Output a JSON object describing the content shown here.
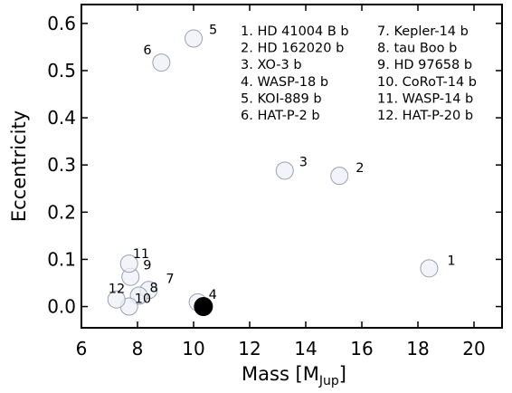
{
  "chart_data": {
    "type": "scatter",
    "xlabel": "Mass [M",
    "xlabel_sub": "Jup",
    "xlabel_close": "]",
    "ylabel": "Eccentricity",
    "xlim": [
      6,
      21
    ],
    "ylim": [
      -0.045,
      0.64
    ],
    "xticks": [
      6,
      8,
      10,
      12,
      14,
      16,
      18,
      20
    ],
    "yticks": [
      0.0,
      0.1,
      0.2,
      0.3,
      0.4,
      0.5,
      0.6
    ],
    "grid": false,
    "marker_colors": {
      "open_fill": "#eef0f8",
      "open_edge": "#9aa0b4",
      "filled": "#000000"
    },
    "points": [
      {
        "id": "1",
        "label": "1",
        "name": "HD 41004 B b",
        "x": 18.4,
        "y": 0.081,
        "filled": false
      },
      {
        "id": "2",
        "label": "2",
        "name": "HD 162020 b",
        "x": 15.2,
        "y": 0.277,
        "filled": false
      },
      {
        "id": "3",
        "label": "3",
        "name": "XO-3 b",
        "x": 13.25,
        "y": 0.288,
        "filled": false
      },
      {
        "id": "4",
        "label": "4",
        "name": "WASP-18 b",
        "x": 10.15,
        "y": 0.009,
        "filled": false
      },
      {
        "id": "5",
        "label": "5",
        "name": "KOI-889 b",
        "x": 10.0,
        "y": 0.568,
        "filled": false
      },
      {
        "id": "6",
        "label": "6",
        "name": "HAT-P-2 b",
        "x": 8.85,
        "y": 0.517,
        "filled": false
      },
      {
        "id": "7",
        "label": "7",
        "name": "Kepler-14 b",
        "x": 8.4,
        "y": 0.035,
        "filled": false
      },
      {
        "id": "8",
        "label": "8",
        "name": "tau Boo b",
        "x": 8.05,
        "y": 0.023,
        "filled": false
      },
      {
        "id": "9",
        "label": "9",
        "name": "HD 97658 b",
        "x": 7.75,
        "y": 0.063,
        "filled": false
      },
      {
        "id": "10",
        "label": "10",
        "name": "CoRoT-14 b",
        "x": 7.7,
        "y": 0.0,
        "filled": false
      },
      {
        "id": "11",
        "label": "11",
        "name": "WASP-14 b",
        "x": 7.7,
        "y": 0.091,
        "filled": false
      },
      {
        "id": "12",
        "label": "12",
        "name": "HAT-P-20 b",
        "x": 7.25,
        "y": 0.015,
        "filled": false
      },
      {
        "id": "target",
        "label": "",
        "name": "",
        "x": 10.35,
        "y": 0.0,
        "filled": true
      }
    ],
    "legend": {
      "placement": "top-center",
      "entries": [
        "1. HD 41004 B b",
        "2. HD 162020 b",
        "3. XO-3 b",
        "4. WASP-18 b",
        "5. KOI-889 b",
        "6. HAT-P-2 b",
        "7. Kepler-14 b",
        "8. tau Boo b",
        "9. HD 97658 b",
        "10. CoRoT-14 b",
        "11. WASP-14 b",
        "12. HAT-P-20 b"
      ]
    }
  }
}
